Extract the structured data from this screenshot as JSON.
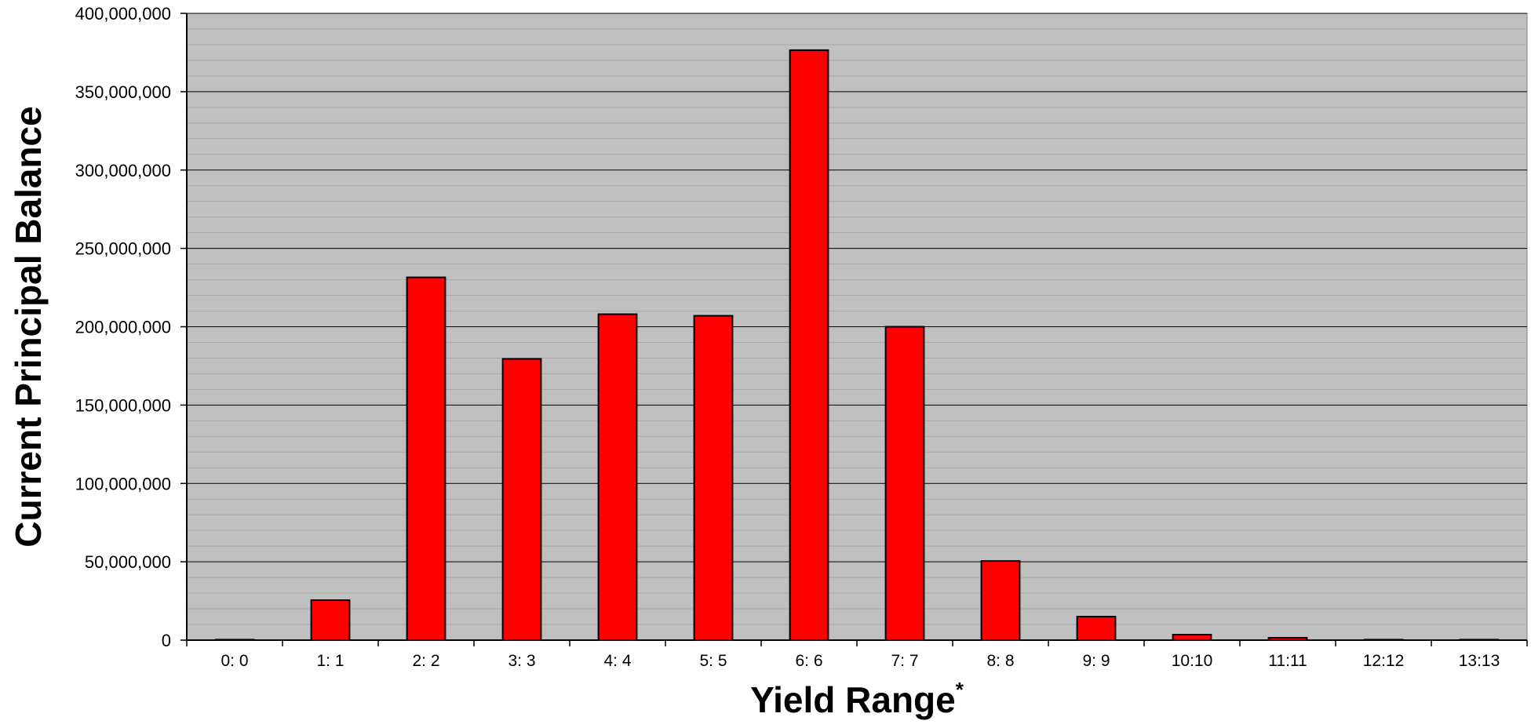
{
  "colors": {
    "plot_background": "#c0c0c0",
    "bar_fill": "#ff0000",
    "bar_stroke": "#000000",
    "major_grid": "#000000",
    "minor_grid": "#a8a8a8",
    "text": "#000000"
  },
  "chart_data": {
    "type": "bar",
    "xlabel": "Yield Range",
    "xlabel_superscript": "*",
    "ylabel": "Current Principal Balance",
    "ylim": [
      0,
      400000000
    ],
    "y_ticks": [
      0,
      50000000,
      100000000,
      150000000,
      200000000,
      250000000,
      300000000,
      350000000,
      400000000
    ],
    "y_tick_labels": [
      "0",
      "50,000,000",
      "100,000,000",
      "150,000,000",
      "200,000,000",
      "250,000,000",
      "300,000,000",
      "350,000,000",
      "400,000,000"
    ],
    "grid": true,
    "legend": "none",
    "categories": [
      "0: 0",
      "1: 1",
      "2: 2",
      "3: 3",
      "4: 4",
      "5: 5",
      "6: 6",
      "7: 7",
      "8: 8",
      "9: 9",
      "10:10",
      "11:11",
      "12:12",
      "13:13"
    ],
    "values": [
      300000,
      25500000,
      231500000,
      179500000,
      208000000,
      207000000,
      376500000,
      200000000,
      50500000,
      15000000,
      3500000,
      1500000,
      300000,
      300000
    ]
  }
}
